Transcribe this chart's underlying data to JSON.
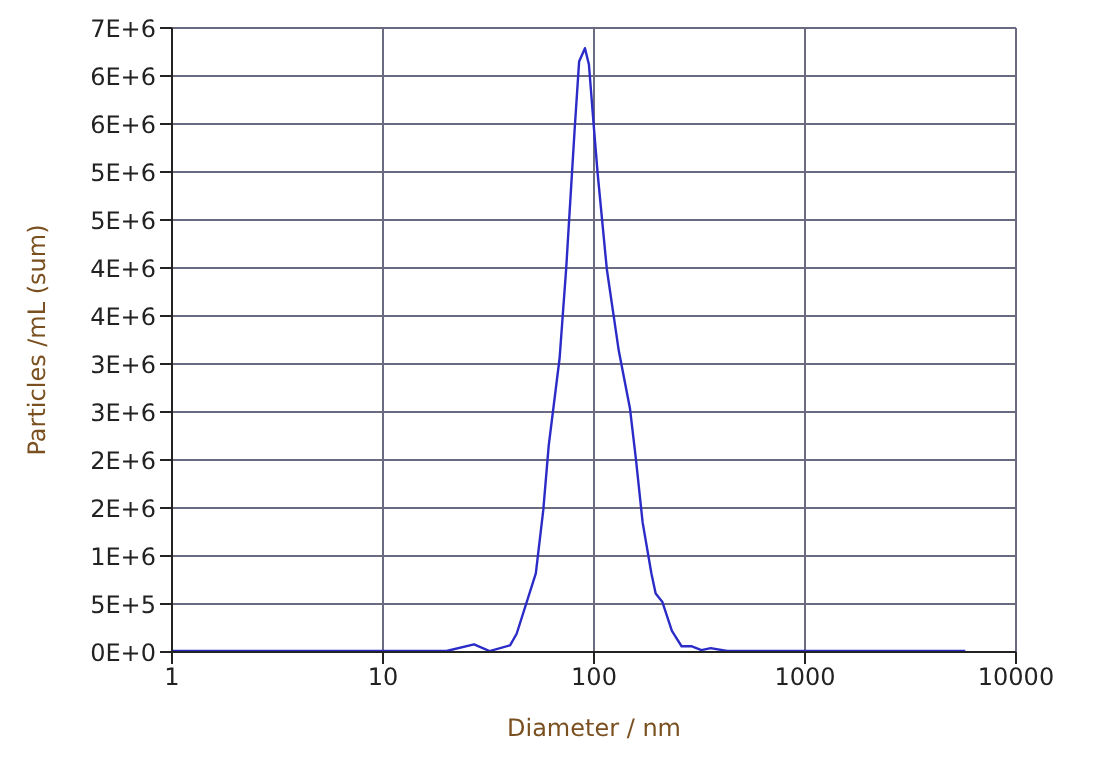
{
  "chart_data": {
    "type": "line",
    "xlabel": "Diameter / nm",
    "ylabel": "Particles /mL (sum)",
    "log": "x",
    "grid": true,
    "legend": false,
    "marker": "none",
    "line_style": "solid",
    "xlim": [
      1,
      10000
    ],
    "xticks": [
      1,
      10,
      100,
      1000,
      10000
    ],
    "ylim": [
      0,
      6500000
    ],
    "yticks": [
      {
        "value": 0,
        "label": "0E+0"
      },
      {
        "value": 500000,
        "label": "5E+5"
      },
      {
        "value": 1000000,
        "label": "1E+6"
      },
      {
        "value": 1500000,
        "label": "2E+6"
      },
      {
        "value": 2000000,
        "label": "2E+6"
      },
      {
        "value": 2500000,
        "label": "3E+6"
      },
      {
        "value": 3000000,
        "label": "3E+6"
      },
      {
        "value": 3500000,
        "label": "4E+6"
      },
      {
        "value": 4000000,
        "label": "4E+6"
      },
      {
        "value": 4500000,
        "label": "5E+6"
      },
      {
        "value": 5000000,
        "label": "5E+6"
      },
      {
        "value": 5500000,
        "label": "6E+6"
      },
      {
        "value": 6000000,
        "label": "6E+6"
      },
      {
        "value": 6500000,
        "label": "7E+6"
      }
    ],
    "series": [
      {
        "color": "#2b2bc8",
        "x": [
          1,
          10,
          20,
          27,
          32,
          40,
          43,
          53,
          57.5,
          61,
          68.7,
          73.8,
          77,
          81,
          85,
          90.6,
          94.6,
          100,
          104,
          115,
          131,
          148,
          158,
          170,
          187,
          196,
          211,
          234,
          260,
          289,
          323,
          357,
          428,
          1000,
          5750
        ],
        "values": [
          10000,
          10000,
          10000,
          80000,
          10000,
          70000,
          190000,
          820000,
          1480000,
          2150000,
          3060000,
          3990000,
          4660000,
          5450000,
          6150000,
          6290000,
          6120000,
          5450000,
          4990000,
          3990000,
          3140000,
          2540000,
          2010000,
          1350000,
          820000,
          610000,
          520000,
          220000,
          60000,
          60000,
          20000,
          40000,
          10000,
          10000,
          10000
        ]
      }
    ]
  }
}
